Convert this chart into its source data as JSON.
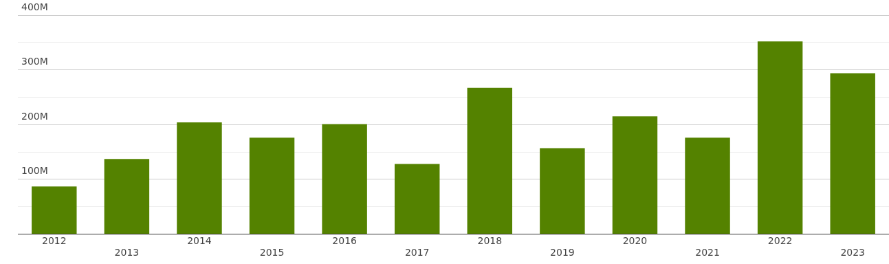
{
  "chart_data": {
    "type": "bar",
    "categories": [
      "2012",
      "2013",
      "2014",
      "2015",
      "2016",
      "2017",
      "2018",
      "2019",
      "2020",
      "2021",
      "2022",
      "2023"
    ],
    "values": [
      87,
      137,
      204,
      176,
      201,
      128,
      267,
      157,
      215,
      176,
      352,
      294
    ],
    "color": "#548200",
    "ylim": [
      0,
      400
    ],
    "yticks": [
      {
        "value": 0,
        "label": null
      },
      {
        "value": 50,
        "label": null
      },
      {
        "value": 100,
        "label": "100M"
      },
      {
        "value": 150,
        "label": null
      },
      {
        "value": 200,
        "label": "200M"
      },
      {
        "value": 250,
        "label": null
      },
      {
        "value": 300,
        "label": "300M"
      },
      {
        "value": 350,
        "label": null
      },
      {
        "value": 400,
        "label": "400M"
      }
    ],
    "grid": "y",
    "legend": false
  }
}
